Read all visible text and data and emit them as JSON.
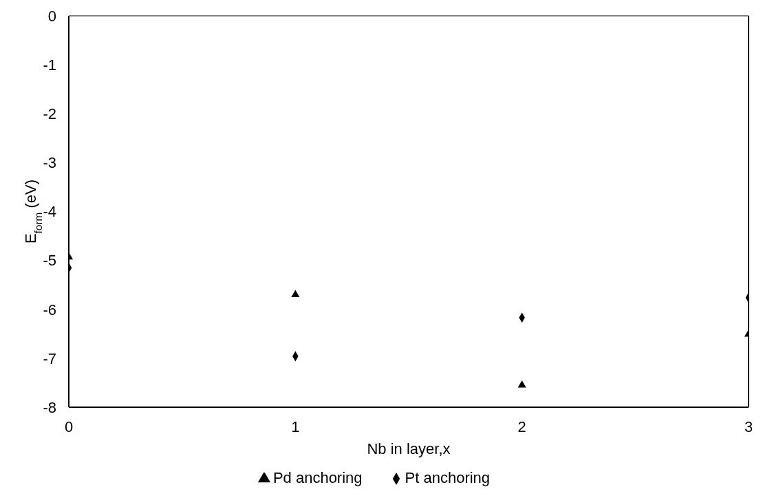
{
  "chart_data": {
    "type": "scatter",
    "xlabel": "Nb in layer,x",
    "ylabel": "E$_{form}$ (eV)",
    "xlim": [
      0,
      3
    ],
    "xticks": [
      0,
      1,
      2,
      3
    ],
    "ylim": [
      -8,
      0
    ],
    "yticks": [
      0,
      -1,
      -2,
      -3,
      -4,
      -5,
      -6,
      -7,
      -8
    ],
    "grid": false,
    "legend": "bottom",
    "series": [
      {
        "name": "Pd anchoring",
        "color": "#000000",
        "marker": "triangle",
        "x": [
          0,
          1,
          2,
          3
        ],
        "values": [
          -4.93,
          -5.7,
          -7.55,
          -6.51
        ]
      },
      {
        "name": "Pt anchoring",
        "color": "#000000",
        "marker": "diamond",
        "x": [
          0,
          1,
          2,
          3
        ],
        "values": [
          -5.15,
          -6.96,
          -6.17,
          -5.76
        ]
      }
    ]
  }
}
